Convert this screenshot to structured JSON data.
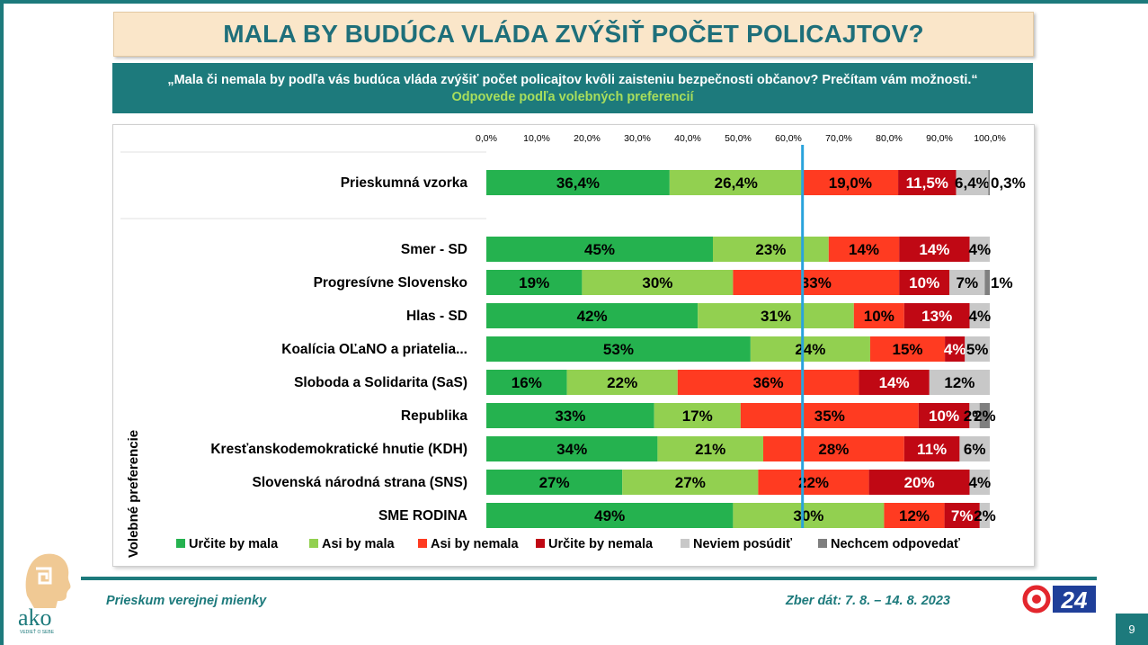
{
  "title": "MALA BY BUDÚCA VLÁDA ZVÝŠIŤ POČET POLICAJTOV?",
  "question": "„Mala či nemala by podľa vás budúca vláda zvýšiť počet policajtov kvôli zaisteniu bezpečnosti občanov? Prečítam vám možnosti.“",
  "subtitle": "Odpovede podľa volebných preferencií",
  "footer": {
    "survey": "Prieskum verejnej mienky",
    "date": "Zber dát: 7. 8. – 14. 8. 2023",
    "page": "9",
    "logo_text": "ako",
    "logo_tagline": "VEDIEŤ O SEBE",
    "logo_24": "24"
  },
  "colors": {
    "teal": "#1d7a7c",
    "title_bg": "#fae6c9",
    "title_text": "#1e6f7a",
    "subtitle_text": "#a8de5c",
    "ref_line": "#2aa3dc"
  },
  "chart_data": {
    "type": "bar",
    "stacked": true,
    "orientation": "horizontal",
    "xlim": [
      0,
      100
    ],
    "x_ticks": [
      "0,0%",
      "10,0%",
      "20,0%",
      "30,0%",
      "40,0%",
      "50,0%",
      "60,0%",
      "70,0%",
      "80,0%",
      "90,0%",
      "100,0%"
    ],
    "ylabel": "Volebné preferencie",
    "reference_line_value": 62.8,
    "legend_position": "bottom",
    "series": [
      {
        "name": "Určite by mala",
        "color": "#25b24f"
      },
      {
        "name": "Asi by mala",
        "color": "#92d050"
      },
      {
        "name": "Asi by nemala",
        "color": "#ff3b21"
      },
      {
        "name": "Určite by nemala",
        "color": "#c00814"
      },
      {
        "name": "Neviem posúdiť",
        "color": "#c8c8c8"
      },
      {
        "name": "Nechcem odpovedať",
        "color": "#7f7f7f"
      }
    ],
    "rows": [
      {
        "category": "Prieskumná vzorka",
        "values": [
          36.4,
          26.4,
          19.0,
          11.5,
          6.4,
          0.3
        ],
        "labels": [
          "36,4%",
          "26,4%",
          "19,0%",
          "11,5%",
          "6,4%",
          "0,3%"
        ]
      },
      {
        "category": "Smer - SD",
        "values": [
          45,
          23,
          14,
          14,
          4,
          0
        ],
        "labels": [
          "45%",
          "23%",
          "14%",
          "14%",
          "4%",
          ""
        ]
      },
      {
        "category": "Progresívne Slovensko",
        "values": [
          19,
          30,
          33,
          10,
          7,
          1
        ],
        "labels": [
          "19%",
          "30%",
          "33%",
          "10%",
          "7%",
          "1%"
        ]
      },
      {
        "category": "Hlas - SD",
        "values": [
          42,
          31,
          10,
          13,
          4,
          0
        ],
        "labels": [
          "42%",
          "31%",
          "10%",
          "13%",
          "4%",
          ""
        ]
      },
      {
        "category": "Koalícia OĽaNO a priatelia...",
        "values": [
          53,
          24,
          15,
          4,
          5,
          0
        ],
        "labels": [
          "53%",
          "24%",
          "15%",
          "4%",
          "5%",
          ""
        ]
      },
      {
        "category": "Sloboda a Solidarita (SaS)",
        "values": [
          16,
          22,
          36,
          14,
          12,
          0
        ],
        "labels": [
          "16%",
          "22%",
          "36%",
          "14%",
          "12%",
          ""
        ]
      },
      {
        "category": "Republika",
        "values": [
          33,
          17,
          35,
          10,
          2,
          2
        ],
        "labels": [
          "33%",
          "17%",
          "35%",
          "10%",
          "2%",
          "2%"
        ]
      },
      {
        "category": "Kresťanskodemokratické hnutie (KDH)",
        "values": [
          34,
          21,
          28,
          11,
          6,
          0
        ],
        "labels": [
          "34%",
          "21%",
          "28%",
          "11%",
          "6%",
          ""
        ]
      },
      {
        "category": "Slovenská národná strana (SNS)",
        "values": [
          27,
          27,
          22,
          20,
          4,
          0
        ],
        "labels": [
          "27%",
          "27%",
          "22%",
          "20%",
          "4%",
          ""
        ]
      },
      {
        "category": "SME RODINA",
        "values": [
          49,
          30,
          12,
          7,
          2,
          0
        ],
        "labels": [
          "49%",
          "30%",
          "12%",
          "7%",
          "2%",
          ""
        ]
      }
    ]
  }
}
